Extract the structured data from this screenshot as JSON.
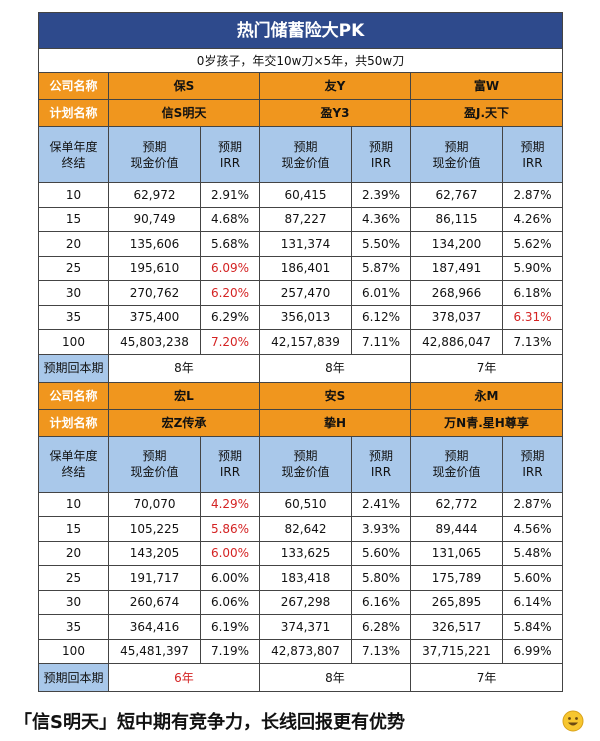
{
  "title": "热门储蓄险大PK",
  "subtitle": "0岁孩子，年交10w刀×5年，共50w刀",
  "blocks": [
    {
      "company_label": "公司名称",
      "companies": [
        "保S",
        "友Y",
        "富W"
      ],
      "plan_label": "计划名称",
      "plans": [
        "信S明天",
        "盈Y3",
        "盈J.天下"
      ],
      "header": [
        "保单年度\n终结",
        "预期\n现金价值",
        "预期\nIRR",
        "预期\n现金价值",
        "预期\nIRR",
        "预期\n现金价值",
        "预期\nIRR"
      ],
      "rows": [
        [
          "10",
          "62,972",
          "2.91%",
          "60,415",
          "2.39%",
          "62,767",
          "2.87%"
        ],
        [
          "15",
          "90,749",
          "4.68%",
          "87,227",
          "4.36%",
          "86,115",
          "4.26%"
        ],
        [
          "20",
          "135,606",
          "5.68%",
          "131,374",
          "5.50%",
          "134,200",
          "5.62%"
        ],
        [
          "25",
          "195,610",
          {
            "text": "6.09%",
            "color": "#d42323"
          },
          "186,401",
          "5.87%",
          "187,491",
          "5.90%"
        ],
        [
          "30",
          "270,762",
          {
            "text": "6.20%",
            "color": "#d42323"
          },
          "257,470",
          "6.01%",
          "268,966",
          "6.18%"
        ],
        [
          "35",
          "375,400",
          "6.29%",
          "356,013",
          "6.12%",
          "378,037",
          {
            "text": "6.31%",
            "color": "#d42323"
          }
        ],
        [
          "100",
          "45,803,238",
          {
            "text": "7.20%",
            "color": "#d42323"
          },
          "42,157,839",
          "7.11%",
          "42,886,047",
          "7.13%"
        ]
      ],
      "payback_label": "预期回本期",
      "payback": [
        "8年",
        "8年",
        "7年"
      ]
    },
    {
      "company_label": "公司名称",
      "companies": [
        "宏L",
        "安S",
        "永M"
      ],
      "plan_label": "计划名称",
      "plans": [
        "宏Z传承",
        "挚H",
        "万N青.星H尊享"
      ],
      "header": [
        "保单年度\n终结",
        "预期\n现金价值",
        "预期\nIRR",
        "预期\n现金价值",
        "预期\nIRR",
        "预期\n现金价值",
        "预期\nIRR"
      ],
      "rows": [
        [
          "10",
          "70,070",
          {
            "text": "4.29%",
            "color": "#d42323"
          },
          "60,510",
          "2.41%",
          "62,772",
          "2.87%"
        ],
        [
          "15",
          "105,225",
          {
            "text": "5.86%",
            "color": "#d42323"
          },
          "82,642",
          "3.93%",
          "89,444",
          "4.56%"
        ],
        [
          "20",
          "143,205",
          {
            "text": "6.00%",
            "color": "#d42323"
          },
          "133,625",
          "5.60%",
          "131,065",
          "5.48%"
        ],
        [
          "25",
          "191,717",
          "6.00%",
          "183,418",
          "5.80%",
          "175,789",
          "5.60%"
        ],
        [
          "30",
          "260,674",
          "6.06%",
          "267,298",
          "6.16%",
          "265,895",
          "6.14%"
        ],
        [
          "35",
          "364,416",
          "6.19%",
          "374,371",
          "6.28%",
          "326,517",
          "5.84%"
        ],
        [
          "100",
          "45,481,397",
          "7.19%",
          "42,873,807",
          "7.13%",
          "37,715,221",
          "6.99%"
        ]
      ],
      "payback_label": "预期回本期",
      "payback": [
        {
          "text": "6年",
          "color": "#d42323"
        },
        "8年",
        "7年"
      ]
    }
  ],
  "footer": "「信S明天」短中期有竞争力，长线回报更有优势"
}
